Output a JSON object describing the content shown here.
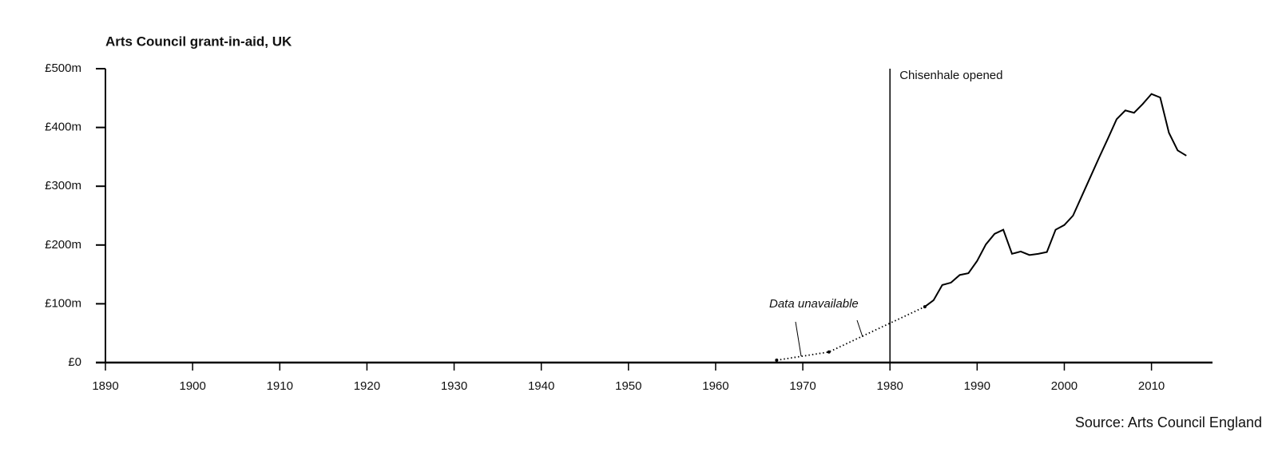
{
  "chart_data": {
    "type": "line",
    "title": "Arts Council grant-in-aid, UK",
    "source": "Source: Arts Council England",
    "xlim": [
      1890,
      2017
    ],
    "xticks": [
      1890,
      1900,
      1910,
      1920,
      1930,
      1940,
      1950,
      1960,
      1970,
      1980,
      1990,
      2000,
      2010
    ],
    "ylim": [
      0,
      500
    ],
    "yticks": [
      {
        "value": 0,
        "label": "£0"
      },
      {
        "value": 100,
        "label": "£100m"
      },
      {
        "value": 200,
        "label": "£200m"
      },
      {
        "value": 300,
        "label": "£300m"
      },
      {
        "value": 400,
        "label": "£400m"
      },
      {
        "value": 500,
        "label": "£500m"
      }
    ],
    "color": "#000000",
    "series": [
      {
        "style": "dotted",
        "marker": true,
        "color": "#000000",
        "x": [
          1967,
          1973,
          1984
        ],
        "values": [
          4,
          18,
          95
        ]
      },
      {
        "style": "solid",
        "marker": false,
        "color": "#000000",
        "x": [
          1984,
          1985,
          1986,
          1987,
          1988,
          1989,
          1990,
          1991,
          1992,
          1993,
          1994,
          1995,
          1996,
          1997,
          1998,
          1999,
          2000,
          2001,
          2002,
          2003,
          2004,
          2005,
          2006,
          2007,
          2008,
          2009,
          2010,
          2011,
          2012,
          2013,
          2014
        ],
        "values": [
          95,
          106,
          132,
          136,
          149,
          152,
          173,
          201,
          219,
          226,
          185,
          189,
          183,
          185,
          188,
          226,
          234,
          250,
          283,
          316,
          349,
          381,
          414,
          429,
          425,
          440,
          457,
          451,
          391,
          361,
          352
        ]
      }
    ],
    "annotations": [
      {
        "text": "Chisenhale opened",
        "x": 1980
      },
      {
        "text": "Data unavailable"
      }
    ]
  }
}
